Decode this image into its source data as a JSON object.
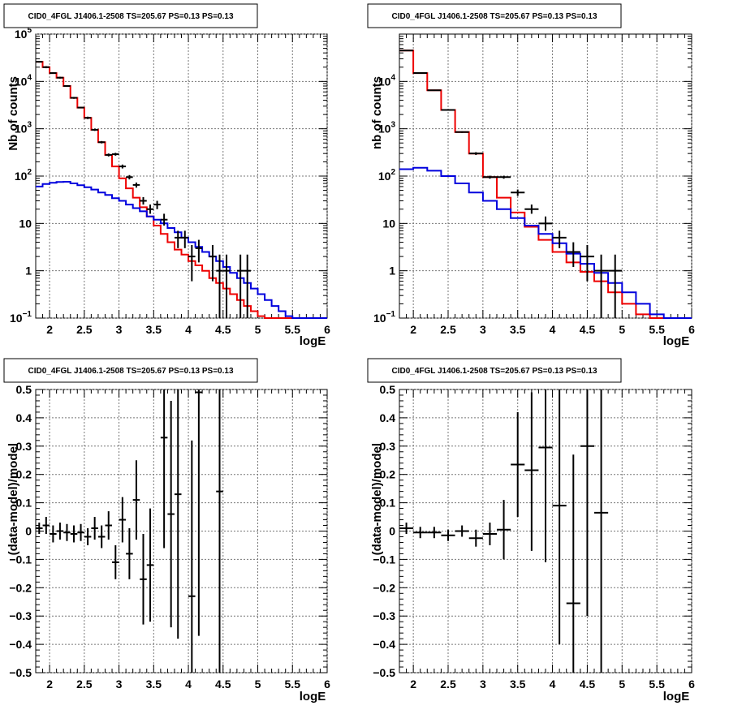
{
  "colors": {
    "red": "#ee0000",
    "blue": "#0000dd",
    "black": "#000000",
    "grid": "#777777"
  },
  "chart_data": [
    {
      "id": "top-left",
      "type": "line",
      "title": "CID0_4FGL J1406.1-2508 TS=205.67 PS=0.13 PS=0.13",
      "xlabel": "logE",
      "ylabel": "Nb of counts",
      "yscale": "log",
      "xlim": [
        1.8,
        6.0
      ],
      "ylim": [
        0.1,
        100000
      ],
      "grid": true,
      "xticks": [
        "2",
        "2.5",
        "3",
        "3.5",
        "4",
        "4.5",
        "5",
        "5.5",
        "6"
      ],
      "xtick_values": [
        2,
        2.5,
        3,
        3.5,
        4,
        4.5,
        5,
        5.5,
        6
      ],
      "yticks": [
        {
          "value": 0.1,
          "base": "10",
          "exp": "−1"
        },
        {
          "value": 1,
          "label": "1"
        },
        {
          "value": 10,
          "label": "10"
        },
        {
          "value": 100,
          "base": "10",
          "exp": "2"
        },
        {
          "value": 1000,
          "base": "10",
          "exp": "3"
        },
        {
          "value": 10000,
          "base": "10",
          "exp": "4"
        },
        {
          "value": 100000,
          "base": "10",
          "exp": "5"
        }
      ],
      "bin_width": 0.1,
      "x_start": 1.8,
      "series": [
        {
          "color": "red",
          "values": [
            26000,
            20000,
            15000,
            12000,
            8000,
            4500,
            2800,
            1700,
            950,
            520,
            280,
            160,
            90,
            55,
            35,
            22,
            14,
            9,
            6,
            4,
            2.8,
            2.2,
            1.6,
            1.3,
            1.0,
            0.7,
            0.55,
            0.42,
            0.32,
            0.24,
            0.18,
            0.14,
            0.11,
            0.1,
            0.1,
            0.1,
            0.1,
            0.1,
            0.1,
            0.1,
            0.1,
            0.1
          ]
        },
        {
          "color": "blue",
          "values": [
            60,
            68,
            72,
            75,
            76,
            70,
            64,
            58,
            52,
            45,
            40,
            34,
            30,
            25,
            21,
            18,
            14,
            12,
            10,
            8,
            6.5,
            5,
            4,
            3.2,
            2.5,
            2,
            1.6,
            1.2,
            0.9,
            0.7,
            0.55,
            0.42,
            0.32,
            0.24,
            0.18,
            0.14,
            0.11,
            0.1,
            0.1,
            0.1,
            0.1,
            0.1
          ]
        }
      ],
      "points": [
        {
          "x": 1.85,
          "y": 26000,
          "lo": 25000,
          "hi": 27000
        },
        {
          "x": 1.95,
          "y": 20000,
          "lo": 19000,
          "hi": 21000
        },
        {
          "x": 2.05,
          "y": 15000,
          "lo": 14500,
          "hi": 15500
        },
        {
          "x": 2.15,
          "y": 12000,
          "lo": 11500,
          "hi": 12500
        },
        {
          "x": 2.25,
          "y": 8000,
          "lo": 7700,
          "hi": 8300
        },
        {
          "x": 2.35,
          "y": 4500,
          "lo": 4300,
          "hi": 4700
        },
        {
          "x": 2.45,
          "y": 2800,
          "lo": 2700,
          "hi": 2900
        },
        {
          "x": 2.55,
          "y": 1700,
          "lo": 1600,
          "hi": 1800
        },
        {
          "x": 2.65,
          "y": 950,
          "lo": 900,
          "hi": 1000
        },
        {
          "x": 2.75,
          "y": 520,
          "lo": 490,
          "hi": 550
        },
        {
          "x": 2.85,
          "y": 280,
          "lo": 260,
          "hi": 300
        },
        {
          "x": 2.95,
          "y": 290,
          "lo": 270,
          "hi": 310
        },
        {
          "x": 3.05,
          "y": 160,
          "lo": 145,
          "hi": 175
        },
        {
          "x": 3.15,
          "y": 95,
          "lo": 85,
          "hi": 105
        },
        {
          "x": 3.25,
          "y": 65,
          "lo": 57,
          "hi": 73
        },
        {
          "x": 3.35,
          "y": 30,
          "lo": 25,
          "hi": 36
        },
        {
          "x": 3.45,
          "y": 20,
          "lo": 16,
          "hi": 25
        },
        {
          "x": 3.55,
          "y": 25,
          "lo": 20,
          "hi": 30
        },
        {
          "x": 3.65,
          "y": 12,
          "lo": 9,
          "hi": 16
        },
        {
          "x": 3.85,
          "y": 5,
          "lo": 3,
          "hi": 7
        },
        {
          "x": 3.95,
          "y": 5,
          "lo": 3,
          "hi": 7
        },
        {
          "x": 4.05,
          "y": 2,
          "lo": 0.6,
          "hi": 3.5
        },
        {
          "x": 4.15,
          "y": 3,
          "lo": 1.5,
          "hi": 4.5
        },
        {
          "x": 4.35,
          "y": 2,
          "lo": 0.6,
          "hi": 3.5
        },
        {
          "x": 4.45,
          "y": 1,
          "lo": 0.1,
          "hi": 2.2
        },
        {
          "x": 4.55,
          "y": 1,
          "lo": 0.1,
          "hi": 2.2
        },
        {
          "x": 4.75,
          "y": 1,
          "lo": 0.1,
          "hi": 2.2
        },
        {
          "x": 4.85,
          "y": 1,
          "lo": 0.1,
          "hi": 2.2
        }
      ]
    },
    {
      "id": "top-right",
      "type": "line",
      "title": "CID0_4FGL J1406.1-2508 TS=205.67 PS=0.13 PS=0.13",
      "xlabel": "logE",
      "ylabel": "nb of counts",
      "yscale": "log",
      "xlim": [
        1.8,
        6.0
      ],
      "ylim": [
        0.1,
        100000
      ],
      "grid": true,
      "xticks": [
        "2",
        "2.5",
        "3",
        "3.5",
        "4",
        "4.5",
        "5",
        "5.5",
        "6"
      ],
      "xtick_values": [
        2,
        2.5,
        3,
        3.5,
        4,
        4.5,
        5,
        5.5,
        6
      ],
      "yticks": [
        {
          "value": 0.1,
          "base": "10",
          "exp": "−1"
        },
        {
          "value": 1,
          "label": "1"
        },
        {
          "value": 10,
          "label": "10"
        },
        {
          "value": 100,
          "base": "10",
          "exp": "2"
        },
        {
          "value": 1000,
          "base": "10",
          "exp": "3"
        },
        {
          "value": 10000,
          "base": "10",
          "exp": "4"
        }
      ],
      "bin_width": 0.2,
      "x_start": 1.8,
      "series": [
        {
          "color": "red",
          "values": [
            45000,
            15000,
            6500,
            2500,
            850,
            300,
            95,
            35,
            17,
            8.5,
            4.5,
            2.5,
            1.5,
            0.95,
            0.6,
            0.35,
            0.2,
            0.12,
            0.1,
            0.1,
            0.1
          ]
        },
        {
          "color": "blue",
          "values": [
            140,
            150,
            130,
            100,
            70,
            45,
            30,
            20,
            13,
            9,
            6,
            3.8,
            2.3,
            1.4,
            0.9,
            0.55,
            0.35,
            0.2,
            0.12,
            0.1,
            0.1
          ]
        }
      ],
      "points": [
        {
          "x": 1.9,
          "y": 45000,
          "lo": 44000,
          "hi": 46000
        },
        {
          "x": 2.1,
          "y": 15000,
          "lo": 14500,
          "hi": 15500
        },
        {
          "x": 2.3,
          "y": 6500,
          "lo": 6300,
          "hi": 6700
        },
        {
          "x": 2.5,
          "y": 2500,
          "lo": 2400,
          "hi": 2600
        },
        {
          "x": 2.7,
          "y": 850,
          "lo": 820,
          "hi": 880
        },
        {
          "x": 2.9,
          "y": 300,
          "lo": 280,
          "hi": 320
        },
        {
          "x": 3.1,
          "y": 95,
          "lo": 88,
          "hi": 102
        },
        {
          "x": 3.3,
          "y": 95,
          "lo": 88,
          "hi": 102
        },
        {
          "x": 3.5,
          "y": 45,
          "lo": 38,
          "hi": 52
        },
        {
          "x": 3.7,
          "y": 20,
          "lo": 16,
          "hi": 25
        },
        {
          "x": 3.9,
          "y": 10,
          "lo": 7,
          "hi": 14
        },
        {
          "x": 4.1,
          "y": 5,
          "lo": 3,
          "hi": 7
        },
        {
          "x": 4.3,
          "y": 2.5,
          "lo": 1.2,
          "hi": 4
        },
        {
          "x": 4.5,
          "y": 2,
          "lo": 0.6,
          "hi": 3.5
        },
        {
          "x": 4.7,
          "y": 1,
          "lo": 0.1,
          "hi": 2.2
        },
        {
          "x": 4.9,
          "y": 1,
          "lo": 0.1,
          "hi": 2.2
        }
      ]
    },
    {
      "id": "bottom-left",
      "type": "scatter",
      "title": "CID0_4FGL J1406.1-2508 TS=205.67 PS=0.13 PS=0.13",
      "xlabel": "logE",
      "ylabel": "(data-model)/model",
      "yscale": "linear",
      "xlim": [
        1.8,
        6.0
      ],
      "ylim": [
        -0.5,
        0.5
      ],
      "grid": true,
      "xticks": [
        "2",
        "2.5",
        "3",
        "3.5",
        "4",
        "4.5",
        "5",
        "5.5",
        "6"
      ],
      "xtick_values": [
        2,
        2.5,
        3,
        3.5,
        4,
        4.5,
        5,
        5.5,
        6
      ],
      "yticks": [
        {
          "value": -0.5,
          "label": "−0.5"
        },
        {
          "value": -0.4,
          "label": "−0.4"
        },
        {
          "value": -0.3,
          "label": "−0.3"
        },
        {
          "value": -0.2,
          "label": "−0.2"
        },
        {
          "value": -0.1,
          "label": "−0.1"
        },
        {
          "value": 0,
          "label": "0"
        },
        {
          "value": 0.1,
          "label": "0.1"
        },
        {
          "value": 0.2,
          "label": "0.2"
        },
        {
          "value": 0.3,
          "label": "0.3"
        },
        {
          "value": 0.4,
          "label": "0.4"
        },
        {
          "value": 0.5,
          "label": "0.5"
        }
      ],
      "bin_width": 0.1,
      "points": [
        {
          "x": 1.85,
          "y": 0.01,
          "lo": -0.01,
          "hi": 0.03
        },
        {
          "x": 1.95,
          "y": 0.02,
          "lo": -0.01,
          "hi": 0.05
        },
        {
          "x": 2.05,
          "y": -0.01,
          "lo": -0.04,
          "hi": 0.02
        },
        {
          "x": 2.15,
          "y": 0.0,
          "lo": -0.03,
          "hi": 0.03
        },
        {
          "x": 2.25,
          "y": -0.005,
          "lo": -0.035,
          "hi": 0.025
        },
        {
          "x": 2.35,
          "y": -0.01,
          "lo": -0.04,
          "hi": 0.02
        },
        {
          "x": 2.45,
          "y": -0.005,
          "lo": -0.035,
          "hi": 0.025
        },
        {
          "x": 2.55,
          "y": -0.02,
          "lo": -0.05,
          "hi": 0.01
        },
        {
          "x": 2.65,
          "y": 0.01,
          "lo": -0.03,
          "hi": 0.05
        },
        {
          "x": 2.75,
          "y": -0.02,
          "lo": -0.06,
          "hi": 0.02
        },
        {
          "x": 2.85,
          "y": 0.02,
          "lo": -0.03,
          "hi": 0.07
        },
        {
          "x": 2.95,
          "y": -0.11,
          "lo": -0.17,
          "hi": -0.05
        },
        {
          "x": 3.05,
          "y": 0.04,
          "lo": -0.04,
          "hi": 0.12
        },
        {
          "x": 3.15,
          "y": -0.08,
          "lo": -0.17,
          "hi": 0.01
        },
        {
          "x": 3.25,
          "y": 0.11,
          "lo": -0.03,
          "hi": 0.25
        },
        {
          "x": 3.35,
          "y": -0.17,
          "lo": -0.33,
          "hi": -0.01
        },
        {
          "x": 3.45,
          "y": -0.12,
          "lo": -0.32,
          "hi": 0.08
        },
        {
          "x": 3.65,
          "y": 0.33,
          "lo": -0.06,
          "hi": 0.72
        },
        {
          "x": 3.75,
          "y": 0.06,
          "lo": -0.34,
          "hi": 0.46
        },
        {
          "x": 3.85,
          "y": 0.13,
          "lo": -0.38,
          "hi": 0.64
        },
        {
          "x": 4.05,
          "y": -0.23,
          "lo": -0.78,
          "hi": 0.32
        },
        {
          "x": 4.15,
          "y": 0.49,
          "lo": -0.37,
          "hi": 1.35
        },
        {
          "x": 4.45,
          "y": 0.14,
          "lo": -0.6,
          "hi": 0.88
        }
      ]
    },
    {
      "id": "bottom-right",
      "type": "scatter",
      "title": "CID0_4FGL J1406.1-2508 TS=205.67 PS=0.13 PS=0.13",
      "xlabel": "logE",
      "ylabel": "(data-model)/model",
      "yscale": "linear",
      "xlim": [
        1.8,
        6.0
      ],
      "ylim": [
        -0.5,
        0.5
      ],
      "grid": true,
      "xticks": [
        "2",
        "2.5",
        "3",
        "3.5",
        "4",
        "4.5",
        "5",
        "5.5",
        "6"
      ],
      "xtick_values": [
        2,
        2.5,
        3,
        3.5,
        4,
        4.5,
        5,
        5.5,
        6
      ],
      "yticks": [
        {
          "value": -0.5,
          "label": "−0.5"
        },
        {
          "value": -0.4,
          "label": "−0.4"
        },
        {
          "value": -0.3,
          "label": "−0.3"
        },
        {
          "value": -0.2,
          "label": "−0.2"
        },
        {
          "value": -0.1,
          "label": "−0.1"
        },
        {
          "value": 0,
          "label": "0"
        },
        {
          "value": 0.1,
          "label": "0.1"
        },
        {
          "value": 0.2,
          "label": "0.2"
        },
        {
          "value": 0.3,
          "label": "0.3"
        },
        {
          "value": 0.4,
          "label": "0.4"
        },
        {
          "value": 0.5,
          "label": "0.5"
        }
      ],
      "bin_width": 0.2,
      "points": [
        {
          "x": 1.9,
          "y": 0.01,
          "lo": -0.01,
          "hi": 0.03
        },
        {
          "x": 2.1,
          "y": -0.005,
          "lo": -0.025,
          "hi": 0.015
        },
        {
          "x": 2.3,
          "y": -0.005,
          "lo": -0.025,
          "hi": 0.015
        },
        {
          "x": 2.5,
          "y": -0.015,
          "lo": -0.035,
          "hi": 0.005
        },
        {
          "x": 2.7,
          "y": 0.0,
          "lo": -0.02,
          "hi": 0.02
        },
        {
          "x": 2.9,
          "y": -0.025,
          "lo": -0.055,
          "hi": 0.005
        },
        {
          "x": 3.1,
          "y": -0.01,
          "lo": -0.05,
          "hi": 0.03
        },
        {
          "x": 3.3,
          "y": 0.005,
          "lo": -0.1,
          "hi": 0.11
        },
        {
          "x": 3.5,
          "y": 0.235,
          "lo": 0.05,
          "hi": 0.42
        },
        {
          "x": 3.7,
          "y": 0.215,
          "lo": -0.07,
          "hi": 0.49
        },
        {
          "x": 3.9,
          "y": 0.295,
          "lo": -0.11,
          "hi": 0.7
        },
        {
          "x": 4.1,
          "y": 0.09,
          "lo": -0.4,
          "hi": 0.58
        },
        {
          "x": 4.3,
          "y": -0.255,
          "lo": -0.78,
          "hi": 0.27
        },
        {
          "x": 4.5,
          "y": 0.3,
          "lo": -0.3,
          "hi": 0.9
        },
        {
          "x": 4.7,
          "y": 0.065,
          "lo": -0.6,
          "hi": 0.73
        }
      ]
    }
  ]
}
